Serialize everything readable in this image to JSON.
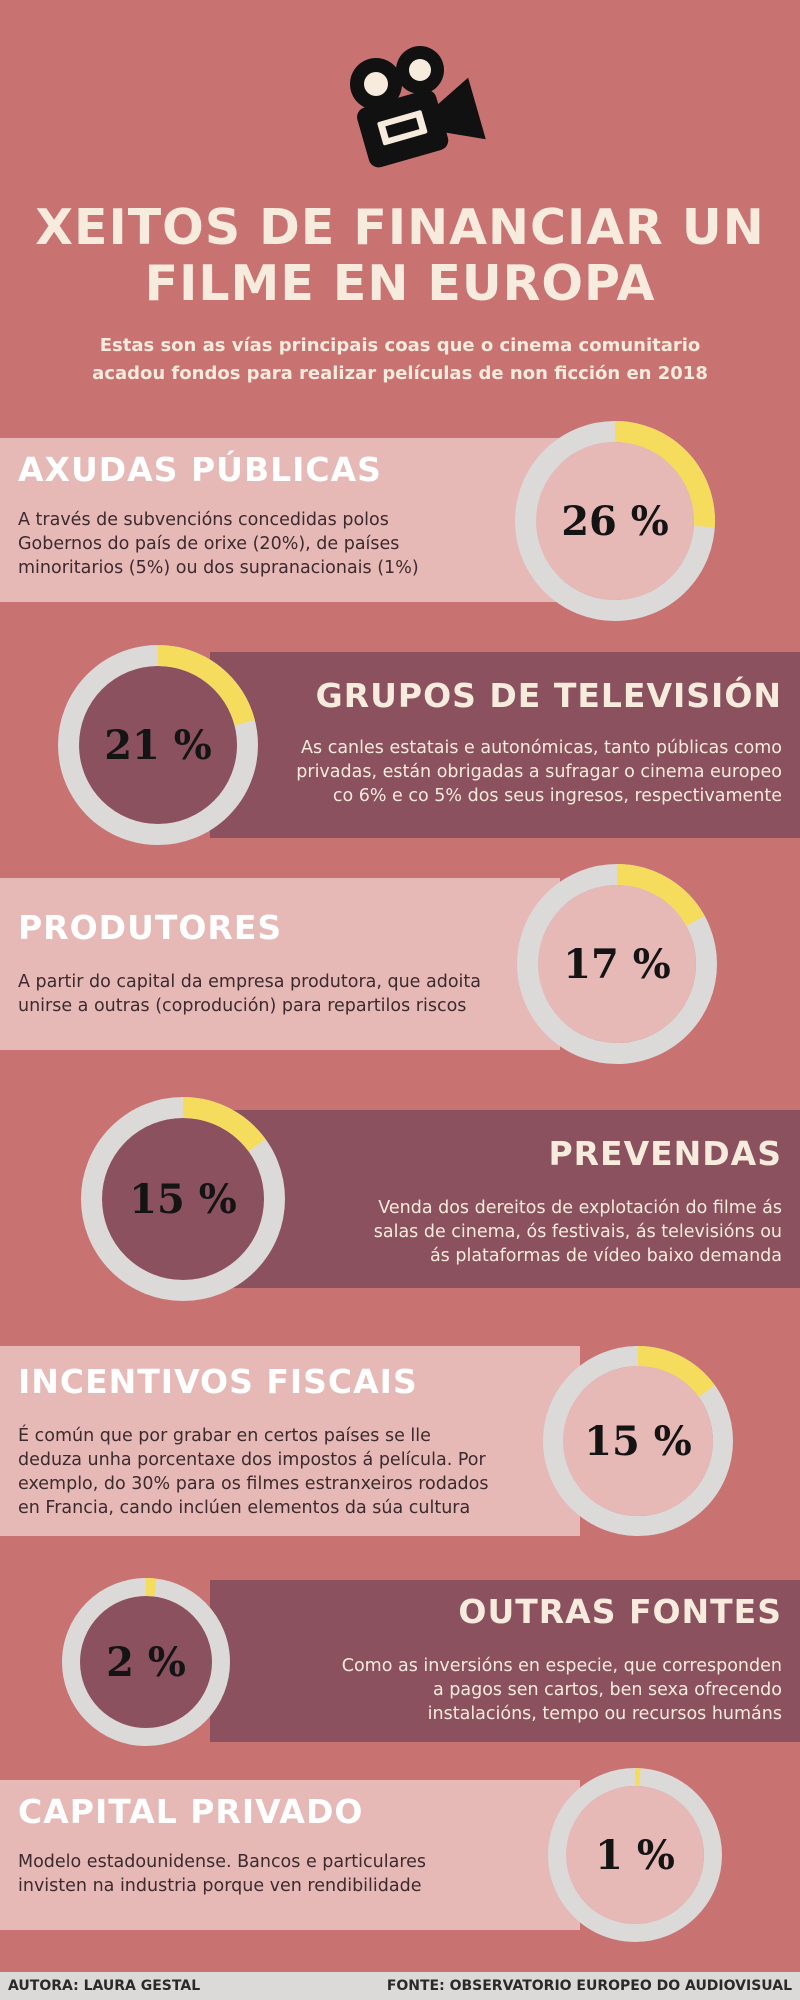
{
  "header": {
    "title_line1": "XEITOS DE FINANCIAR UN",
    "title_line2": "FILME EN EUROPA",
    "subtitle_line1": "Estas son as vías principais coas que o cinema comunitario",
    "subtitle_line2": "acadou fondos para realizar películas de non ficción en 2018",
    "icon": "movie-camera-icon"
  },
  "colors": {
    "background": "#c97272",
    "light_band": "#e7b9b6",
    "dark_band": "#8b515f",
    "ring_track": "#dcd9d9",
    "ring_fill": "#f6dc5c"
  },
  "chart_data": {
    "type": "pie",
    "unit": "%",
    "categories": [
      "AXUDAS PÚBLICAS",
      "GRUPOS DE TELEVISIÓN",
      "PRODUTORES",
      "PREVENDAS",
      "INCENTIVOS FISCAIS",
      "OUTRAS FONTES",
      "CAPITAL PRIVADO"
    ],
    "values": [
      26,
      21,
      17,
      15,
      15,
      2,
      1
    ],
    "labels": [
      "26 %",
      "21 %",
      "17 %",
      "15 %",
      "15 %",
      "2 %",
      "1 %"
    ]
  },
  "sections": [
    {
      "title": "AXUDAS PÚBLICAS",
      "value": 26,
      "label": "26 %",
      "lines": [
        "A través de subvencións concedidas polos",
        "Gobernos do país de orixe (20%), de países",
        "minoritarios (5%) ou dos supranacionais (1%)"
      ]
    },
    {
      "title": "GRUPOS DE TELEVISIÓN",
      "value": 21,
      "label": "21 %",
      "lines": [
        "As canles estatais e autonómicas, tanto públicas como",
        "privadas, están obrigadas a sufragar o cinema europeo",
        "co 6% e co 5% dos seus ingresos, respectivamente"
      ]
    },
    {
      "title": "PRODUTORES",
      "value": 17,
      "label": "17 %",
      "lines": [
        "A partir do capital da empresa produtora, que adoita",
        "unirse a outras (coprodución) para repartilos riscos"
      ]
    },
    {
      "title": "PREVENDAS",
      "value": 15,
      "label": "15 %",
      "lines": [
        "Venda dos dereitos de explotación do filme ás",
        "salas de cinema, ós festivais, ás televisións ou",
        "ás plataformas de vídeo baixo demanda"
      ]
    },
    {
      "title": "INCENTIVOS FISCAIS",
      "value": 15,
      "label": "15 %",
      "lines": [
        "É común que por grabar en certos países se lle",
        "deduza unha porcentaxe dos impostos á película. Por",
        "exemplo, do 30% para os filmes estranxeiros rodados",
        "en Francia, cando inclúen elementos da súa cultura"
      ]
    },
    {
      "title": "OUTRAS FONTES",
      "value": 2,
      "label": "2 %",
      "lines": [
        "Como as inversións en especie, que corresponden",
        "a pagos sen cartos, ben sexa ofrecendo",
        "instalacións, tempo ou recursos humáns"
      ]
    },
    {
      "title": "CAPITAL PRIVADO",
      "value": 1,
      "label": "1 %",
      "lines": [
        "Modelo estadounidense. Bancos e particulares",
        "invisten na industria porque ven rendibilidade"
      ]
    }
  ],
  "footer": {
    "author": "AUTORA: LAURA GESTAL",
    "source": "FONTE: OBSERVATORIO EUROPEO DO AUDIOVISUAL"
  }
}
